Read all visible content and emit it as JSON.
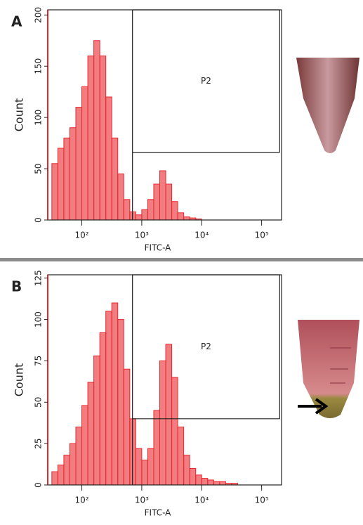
{
  "chart_data": [
    {
      "type": "histogram",
      "panel": "A",
      "x_label": "FITC-A",
      "y_label": "Count",
      "color": "#e8272d",
      "log_x": true,
      "xlim": [
        27,
        215000
      ],
      "xticks": [
        {
          "value": 100,
          "label": "10²"
        },
        {
          "value": 1000,
          "label": "10³"
        },
        {
          "value": 10000,
          "label": "10⁴"
        },
        {
          "value": 100000,
          "label": "10⁵"
        }
      ],
      "ylim": [
        0,
        205
      ],
      "yticks": [
        0,
        50,
        100,
        150,
        200
      ],
      "bins": [
        31.6,
        39.8,
        50.1,
        63.1,
        79.4,
        100,
        125.9,
        158.5,
        199.5,
        251.2,
        316.2,
        398.1,
        501.2,
        631,
        794.3,
        1000,
        1258.9,
        1584.9,
        1995.3,
        2511.9,
        3162.3,
        3981.1,
        5011.9,
        6309.6,
        7943.3,
        10000,
        12589,
        15849,
        19953,
        25119,
        31623,
        39811,
        50119,
        63096,
        79433,
        100000,
        125893,
        158489,
        199526
      ],
      "values": [
        55,
        70,
        80,
        90,
        110,
        130,
        160,
        175,
        160,
        120,
        80,
        45,
        20,
        8,
        5,
        10,
        20,
        35,
        48,
        35,
        18,
        7,
        3,
        2,
        1,
        0,
        0,
        0,
        0,
        0,
        0,
        0,
        0,
        0,
        0,
        0,
        0,
        0
      ],
      "gate": {
        "label": "P2",
        "x": [
          700,
          200000
        ],
        "y": [
          66,
          205
        ]
      }
    },
    {
      "type": "histogram",
      "panel": "B",
      "x_label": "FITC-A",
      "y_label": "Count",
      "color": "#e8272d",
      "log_x": true,
      "xlim": [
        27,
        215000
      ],
      "xticks": [
        {
          "value": 100,
          "label": "10²"
        },
        {
          "value": 1000,
          "label": "10³"
        },
        {
          "value": 10000,
          "label": "10⁴"
        },
        {
          "value": 100000,
          "label": "10⁵"
        }
      ],
      "ylim": [
        0,
        127
      ],
      "yticks": [
        0,
        25,
        50,
        75,
        100,
        125
      ],
      "bins": [
        31.6,
        39.8,
        50.1,
        63.1,
        79.4,
        100,
        125.9,
        158.5,
        199.5,
        251.2,
        316.2,
        398.1,
        501.2,
        631,
        794.3,
        1000,
        1258.9,
        1584.9,
        1995.3,
        2511.9,
        3162.3,
        3981.1,
        5011.9,
        6309.6,
        7943.3,
        10000,
        12589,
        15849,
        19953,
        25119,
        31623,
        39811,
        50119,
        63096,
        79433,
        100000,
        125893,
        158489,
        199526
      ],
      "values": [
        8,
        12,
        18,
        25,
        35,
        48,
        62,
        78,
        92,
        105,
        110,
        100,
        70,
        40,
        22,
        15,
        22,
        45,
        75,
        85,
        65,
        35,
        18,
        10,
        6,
        4,
        3,
        2,
        2,
        1,
        1,
        0,
        0,
        0,
        0,
        0,
        0,
        0
      ],
      "gate": {
        "label": "P2",
        "x": [
          700,
          200000
        ],
        "y": [
          40,
          127
        ]
      }
    }
  ]
}
